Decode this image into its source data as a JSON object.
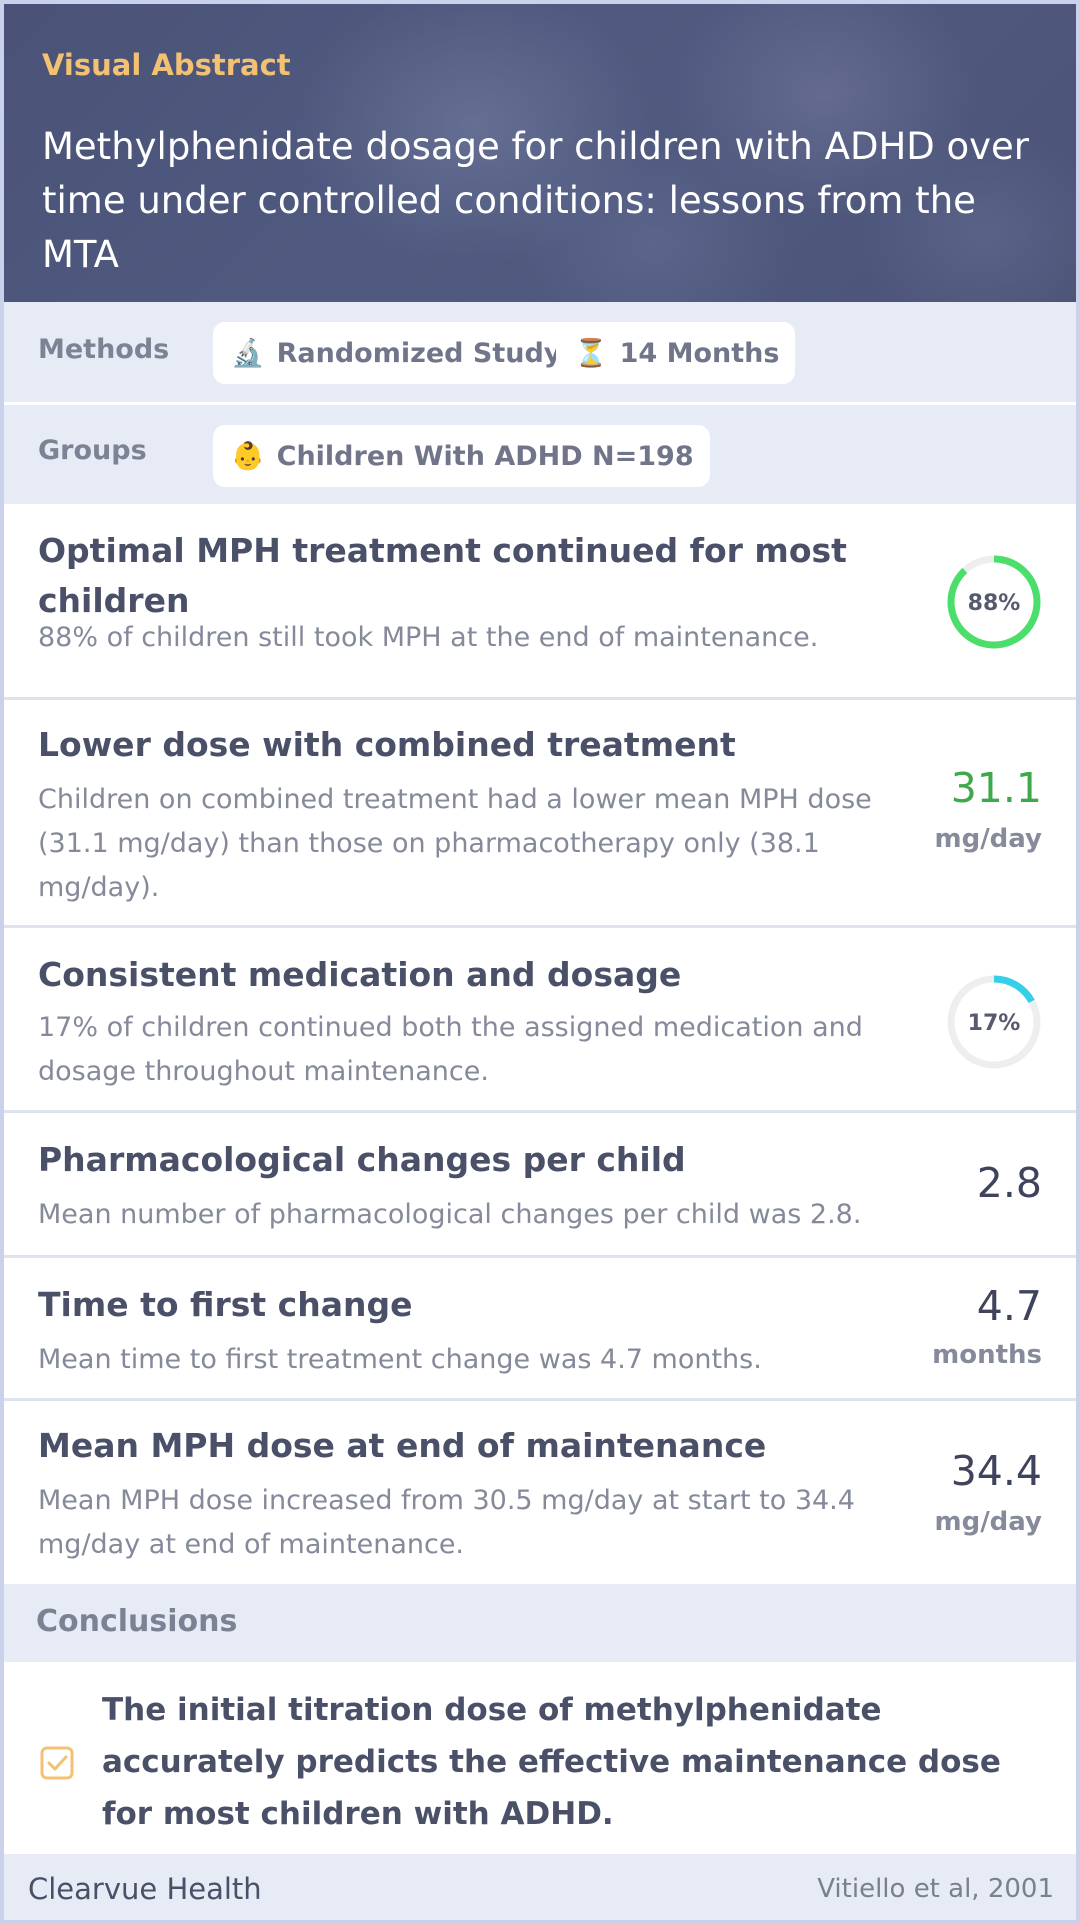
{
  "header": {
    "kicker": "Visual Abstract",
    "title": "Methylphenidate dosage for children with ADHD over time under controlled conditions: lessons from the MTA"
  },
  "methods": {
    "label": "Methods",
    "chips": [
      {
        "icon": "microscope-icon",
        "glyph": "🔬",
        "label": "Randomized Study"
      },
      {
        "icon": "hourglass-icon",
        "glyph": "⏳",
        "label": "14 Months"
      }
    ]
  },
  "groups": {
    "label": "Groups",
    "chips": [
      {
        "icon": "child-icon",
        "glyph": "👶",
        "label": "Children With ADHD N=198"
      }
    ]
  },
  "findings": [
    {
      "title": "Optimal MPH treatment continued for most children",
      "desc": "88% of children still took MPH at the end of maintenance.",
      "ring_label": "88%",
      "ring_fraction": 0.88,
      "ring_color": "#4cde6a"
    },
    {
      "title": "Lower dose with combined treatment",
      "desc": "Children on combined treatment had a lower mean MPH dose (31.1 mg/day) than those on pharmacotherapy only (38.1 mg/day).",
      "stat": "31.1",
      "unit": "mg/day",
      "stat_color": "#3fa84a"
    },
    {
      "title": "Consistent medication and dosage",
      "desc": "17% of children continued both the assigned medication and dosage throughout maintenance.",
      "ring_label": "17%",
      "ring_fraction": 0.17,
      "ring_color": "#34d0ea"
    },
    {
      "title": "Pharmacological changes per child",
      "desc": "Mean number of pharmacological changes per child was 2.8.",
      "stat": "2.8"
    },
    {
      "title": "Time to first change",
      "desc": "Mean time to first treatment change was 4.7 months.",
      "stat": "4.7",
      "unit": "months"
    },
    {
      "title": "Mean MPH dose at end of maintenance",
      "desc": "Mean MPH dose increased from 30.5 mg/day at start to 34.4 mg/day at end of maintenance.",
      "stat": "34.4",
      "unit": "mg/day"
    }
  ],
  "conclusions": {
    "label": "Conclusions",
    "text": "The initial titration dose of methylphenidate accurately predicts the effective maintenance dose for most children with ADHD.",
    "check_color": "#f3c172"
  },
  "footer": {
    "brand": "Clearvue Health",
    "citation": "Vitiello et al, 2001"
  },
  "colors": {
    "header_bg": "#4c5478",
    "accent": "#f3c172",
    "panel_bg": "#e7ebf5"
  }
}
